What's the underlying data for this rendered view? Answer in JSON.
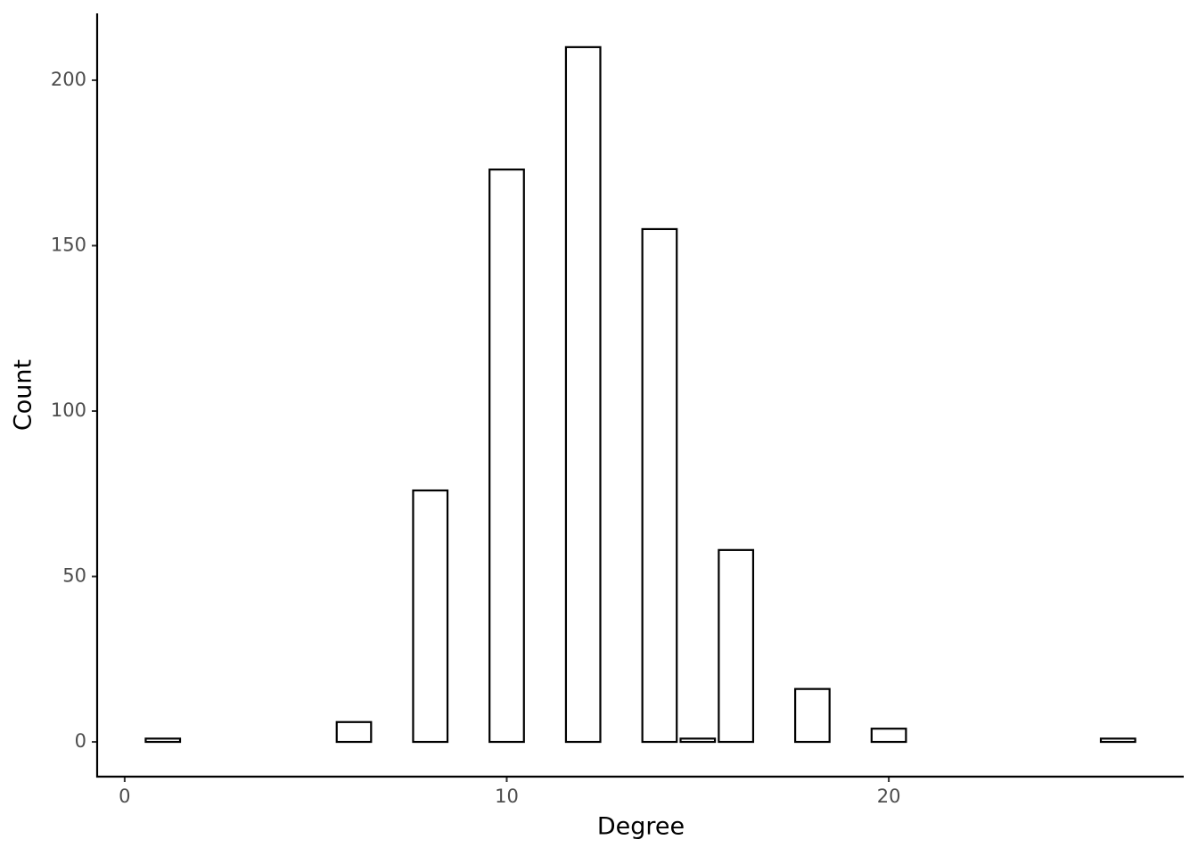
{
  "chart_data": {
    "type": "bar",
    "x_label": "Degree",
    "y_label": "Count",
    "x": [
      1,
      6,
      8,
      10,
      12,
      14,
      15,
      16,
      18,
      20,
      26
    ],
    "values": [
      1,
      6,
      76,
      173,
      210,
      155,
      1,
      58,
      16,
      4,
      1
    ],
    "color": "#ffffff",
    "edgecolor": "#000000",
    "xlim": [
      -0.72,
      27.72
    ],
    "ylim": [
      -10.5,
      220.2
    ],
    "xticks": [
      0,
      10,
      20
    ],
    "yticks": [
      0,
      50,
      100,
      150,
      200
    ],
    "grid": false
  }
}
